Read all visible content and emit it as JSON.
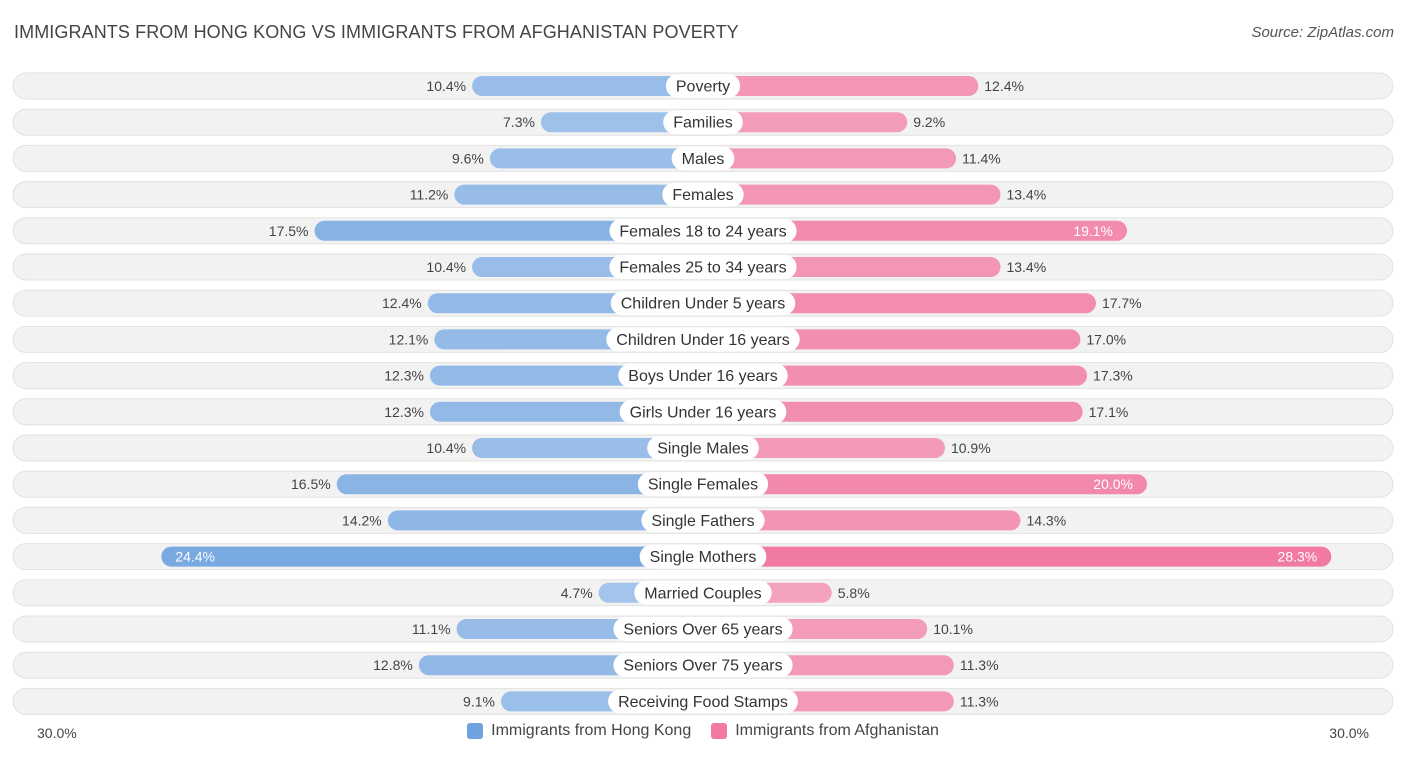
{
  "title": "IMMIGRANTS FROM HONG KONG VS IMMIGRANTS FROM AFGHANISTAN POVERTY",
  "source": "Source: ZipAtlas.com",
  "colors": {
    "left": "#6fa3de",
    "left_light": "#a9c8ec",
    "right": "#f07aa0",
    "right_light": "#f5a9c2",
    "track": "#f0f0f0"
  },
  "chart_data": {
    "type": "bar",
    "orientation": "horizontal-diverging",
    "title": "IMMIGRANTS FROM HONG KONG VS IMMIGRANTS FROM AFGHANISTAN POVERTY",
    "xlim": [
      -30,
      30
    ],
    "axis_left_label": "30.0%",
    "axis_right_label": "30.0%",
    "categories": [
      "Poverty",
      "Families",
      "Males",
      "Females",
      "Females 18 to 24 years",
      "Females 25 to 34 years",
      "Children Under 5 years",
      "Children Under 16 years",
      "Boys Under 16 years",
      "Girls Under 16 years",
      "Single Males",
      "Single Females",
      "Single Fathers",
      "Single Mothers",
      "Married Couples",
      "Seniors Over 65 years",
      "Seniors Over 75 years",
      "Receiving Food Stamps"
    ],
    "series": [
      {
        "name": "Immigrants from Hong Kong",
        "values": [
          10.4,
          7.3,
          9.6,
          11.2,
          17.5,
          10.4,
          12.4,
          12.1,
          12.3,
          12.3,
          10.4,
          16.5,
          14.2,
          24.4,
          4.7,
          11.1,
          12.8,
          9.1
        ],
        "labels": [
          "10.4%",
          "7.3%",
          "9.6%",
          "11.2%",
          "17.5%",
          "10.4%",
          "12.4%",
          "12.1%",
          "12.3%",
          "12.3%",
          "10.4%",
          "16.5%",
          "14.2%",
          "24.4%",
          "4.7%",
          "11.1%",
          "12.8%",
          "9.1%"
        ]
      },
      {
        "name": "Immigrants from Afghanistan",
        "values": [
          12.4,
          9.2,
          11.4,
          13.4,
          19.1,
          13.4,
          17.7,
          17.0,
          17.3,
          17.1,
          10.9,
          20.0,
          14.3,
          28.3,
          5.8,
          10.1,
          11.3,
          11.3
        ],
        "labels": [
          "12.4%",
          "9.2%",
          "11.4%",
          "13.4%",
          "19.1%",
          "13.4%",
          "17.7%",
          "17.0%",
          "17.3%",
          "17.1%",
          "10.9%",
          "20.0%",
          "14.3%",
          "28.3%",
          "5.8%",
          "10.1%",
          "11.3%",
          "11.3%"
        ]
      }
    ]
  },
  "legend": {
    "left": "Immigrants from Hong Kong",
    "right": "Immigrants from Afghanistan"
  }
}
